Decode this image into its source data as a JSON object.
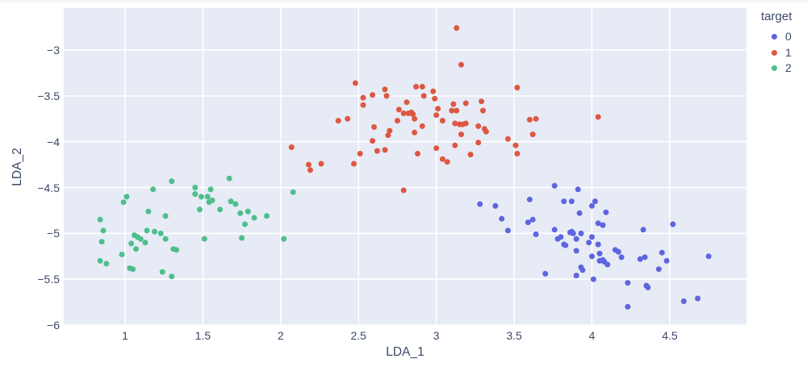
{
  "chart_data": {
    "type": "scatter",
    "title": "",
    "xlabel": "LDA_1",
    "ylabel": "LDA_2",
    "legend_title": "target",
    "legend_position": "outside-top-right",
    "grid": true,
    "xlim": [
      0.606,
      4.993
    ],
    "ylim": [
      -6.0,
      -2.542
    ],
    "x_ticks": [
      1,
      1.5,
      2,
      2.5,
      3,
      3.5,
      4,
      4.5
    ],
    "y_ticks": [
      -3,
      -3.5,
      -4,
      -4.5,
      -5,
      -5.5,
      -6
    ],
    "colors": {
      "page_background": "#ffffff",
      "plot_background": "#e6ebf5",
      "gridline": "#ffffff",
      "text": "#3b4a68"
    },
    "marker_size": 7,
    "series": [
      {
        "name": "0",
        "color": "#5d65df",
        "points": [
          [
            3.76,
            -4.48
          ],
          [
            3.91,
            -4.52
          ],
          [
            3.28,
            -4.68
          ],
          [
            3.38,
            -4.7
          ],
          [
            3.6,
            -4.63
          ],
          [
            3.82,
            -4.65
          ],
          [
            3.87,
            -4.65
          ],
          [
            3.92,
            -4.78
          ],
          [
            3.42,
            -4.84
          ],
          [
            3.59,
            -4.88
          ],
          [
            3.62,
            -4.85
          ],
          [
            3.46,
            -4.97
          ],
          [
            3.64,
            -5.01
          ],
          [
            3.76,
            -4.96
          ],
          [
            3.78,
            -5.06
          ],
          [
            3.8,
            -5.04
          ],
          [
            3.86,
            -4.99
          ],
          [
            3.87,
            -4.98
          ],
          [
            3.88,
            -5.0
          ],
          [
            3.93,
            -5.0
          ],
          [
            3.82,
            -5.12
          ],
          [
            3.83,
            -5.13
          ],
          [
            3.9,
            -5.06
          ],
          [
            3.9,
            -5.19
          ],
          [
            3.7,
            -5.44
          ],
          [
            3.9,
            -5.46
          ],
          [
            3.93,
            -5.37
          ],
          [
            3.94,
            -5.4
          ],
          [
            4.0,
            -4.7
          ],
          [
            4.02,
            -4.65
          ],
          [
            4.09,
            -4.77
          ],
          [
            4.04,
            -4.89
          ],
          [
            4.07,
            -4.91
          ],
          [
            4.33,
            -4.96
          ],
          [
            4.52,
            -4.9
          ],
          [
            4.0,
            -5.04
          ],
          [
            3.98,
            -5.1
          ],
          [
            4.0,
            -5.25
          ],
          [
            4.04,
            -5.12
          ],
          [
            4.05,
            -5.22
          ],
          [
            4.05,
            -5.3
          ],
          [
            4.07,
            -5.29
          ],
          [
            4.08,
            -5.31
          ],
          [
            4.1,
            -5.34
          ],
          [
            4.15,
            -5.18
          ],
          [
            4.17,
            -5.2
          ],
          [
            4.19,
            -5.26
          ],
          [
            4.31,
            -5.28
          ],
          [
            4.34,
            -5.26
          ],
          [
            4.45,
            -5.21
          ],
          [
            4.48,
            -5.3
          ],
          [
            4.43,
            -5.39
          ],
          [
            4.75,
            -5.25
          ],
          [
            4.01,
            -5.5
          ],
          [
            4.23,
            -5.54
          ],
          [
            4.35,
            -5.57
          ],
          [
            4.36,
            -5.59
          ],
          [
            4.23,
            -5.8
          ],
          [
            4.59,
            -5.74
          ],
          [
            4.68,
            -5.71
          ]
        ]
      },
      {
        "name": "1",
        "color": "#de5742",
        "points": [
          [
            2.48,
            -3.36
          ],
          [
            2.53,
            -3.52
          ],
          [
            2.53,
            -3.6
          ],
          [
            2.59,
            -3.49
          ],
          [
            2.67,
            -3.43
          ],
          [
            2.68,
            -3.5
          ],
          [
            2.87,
            -3.4
          ],
          [
            2.91,
            -3.4
          ],
          [
            2.92,
            -3.5
          ],
          [
            2.98,
            -3.45
          ],
          [
            2.99,
            -3.53
          ],
          [
            2.76,
            -3.65
          ],
          [
            2.81,
            -3.57
          ],
          [
            2.79,
            -3.69
          ],
          [
            2.82,
            -3.69
          ],
          [
            2.84,
            -3.68
          ],
          [
            2.85,
            -3.7
          ],
          [
            2.86,
            -3.75
          ],
          [
            2.75,
            -3.77
          ],
          [
            2.37,
            -3.77
          ],
          [
            2.43,
            -3.75
          ],
          [
            2.91,
            -3.83
          ],
          [
            2.86,
            -3.9
          ],
          [
            2.6,
            -3.84
          ],
          [
            2.7,
            -3.88
          ],
          [
            2.69,
            -3.93
          ],
          [
            2.59,
            -3.99
          ],
          [
            2.07,
            -4.06
          ],
          [
            2.51,
            -4.13
          ],
          [
            2.62,
            -4.1
          ],
          [
            2.67,
            -4.09
          ],
          [
            2.88,
            -4.13
          ],
          [
            2.18,
            -4.25
          ],
          [
            2.19,
            -4.31
          ],
          [
            2.26,
            -4.24
          ],
          [
            2.47,
            -4.24
          ],
          [
            2.79,
            -4.53
          ],
          [
            3.0,
            -4.07
          ],
          [
            3.13,
            -2.76
          ],
          [
            3.16,
            -3.16
          ],
          [
            3.52,
            -3.41
          ],
          [
            3.01,
            -3.64
          ],
          [
            3.0,
            -3.71
          ],
          [
            3.11,
            -3.59
          ],
          [
            3.19,
            -3.58
          ],
          [
            3.29,
            -3.56
          ],
          [
            3.1,
            -3.66
          ],
          [
            3.13,
            -3.66
          ],
          [
            3.3,
            -3.66
          ],
          [
            3.04,
            -3.77
          ],
          [
            3.12,
            -3.8
          ],
          [
            3.15,
            -3.81
          ],
          [
            3.17,
            -3.81
          ],
          [
            3.19,
            -3.8
          ],
          [
            3.27,
            -3.83
          ],
          [
            3.31,
            -3.86
          ],
          [
            3.32,
            -3.89
          ],
          [
            3.16,
            -3.92
          ],
          [
            3.6,
            -3.76
          ],
          [
            3.64,
            -3.75
          ],
          [
            3.62,
            -3.92
          ],
          [
            4.04,
            -3.73
          ],
          [
            3.46,
            -3.97
          ],
          [
            3.12,
            -4.04
          ],
          [
            3.27,
            -4.01
          ],
          [
            3.51,
            -4.04
          ],
          [
            3.52,
            -4.13
          ],
          [
            3.22,
            -4.14
          ],
          [
            3.04,
            -4.19
          ],
          [
            3.07,
            -4.22
          ]
        ]
      },
      {
        "name": "2",
        "color": "#4ebe8d",
        "points": [
          [
            0.84,
            -4.85
          ],
          [
            0.86,
            -4.97
          ],
          [
            0.85,
            -5.09
          ],
          [
            0.84,
            -5.3
          ],
          [
            0.88,
            -5.33
          ],
          [
            0.98,
            -5.23
          ],
          [
            0.99,
            -4.66
          ],
          [
            1.01,
            -4.6
          ],
          [
            1.03,
            -5.38
          ],
          [
            1.05,
            -5.39
          ],
          [
            1.04,
            -5.11
          ],
          [
            1.06,
            -5.02
          ],
          [
            1.07,
            -5.17
          ],
          [
            1.08,
            -5.04
          ],
          [
            1.1,
            -5.06
          ],
          [
            1.13,
            -5.1
          ],
          [
            1.14,
            -4.97
          ],
          [
            1.15,
            -4.76
          ],
          [
            1.18,
            -4.52
          ],
          [
            1.19,
            -4.98
          ],
          [
            1.23,
            -5.0
          ],
          [
            1.26,
            -4.81
          ],
          [
            1.26,
            -5.06
          ],
          [
            1.24,
            -5.42
          ],
          [
            1.3,
            -4.43
          ],
          [
            1.3,
            -5.47
          ],
          [
            1.31,
            -5.17
          ],
          [
            1.33,
            -5.18
          ],
          [
            1.45,
            -4.57
          ],
          [
            1.45,
            -4.5
          ],
          [
            1.48,
            -4.74
          ],
          [
            1.49,
            -4.6
          ],
          [
            1.51,
            -5.06
          ],
          [
            1.53,
            -4.6
          ],
          [
            1.54,
            -4.66
          ],
          [
            1.55,
            -4.52
          ],
          [
            1.56,
            -4.64
          ],
          [
            1.61,
            -4.74
          ],
          [
            1.67,
            -4.4
          ],
          [
            1.68,
            -4.65
          ],
          [
            1.71,
            -4.68
          ],
          [
            1.74,
            -4.78
          ],
          [
            1.75,
            -5.05
          ],
          [
            1.77,
            -4.9
          ],
          [
            1.79,
            -4.76
          ],
          [
            1.83,
            -4.83
          ],
          [
            1.91,
            -4.81
          ],
          [
            2.08,
            -4.55
          ],
          [
            2.02,
            -5.06
          ]
        ]
      }
    ]
  }
}
